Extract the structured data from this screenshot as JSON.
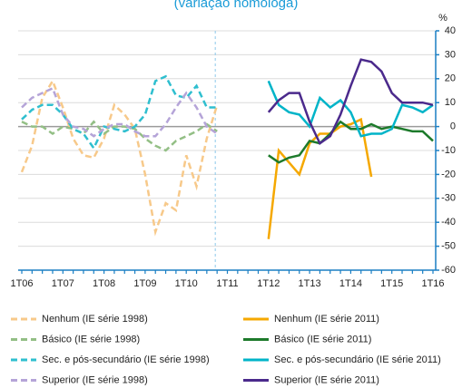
{
  "chart_data": {
    "type": "line",
    "title": "(variação homóloga)",
    "ylabel": "%",
    "categories": [
      "1T06",
      null,
      null,
      null,
      "1T07",
      null,
      null,
      null,
      "1T08",
      null,
      null,
      null,
      "1T09",
      null,
      null,
      null,
      "1T10",
      null,
      null,
      null,
      "1T11",
      null,
      null,
      null,
      "1T12",
      null,
      null,
      null,
      "1T13",
      null,
      null,
      null,
      "1T14",
      null,
      null,
      null,
      "1T15",
      null,
      null,
      null,
      "1T16"
    ],
    "ylim": [
      -60,
      40
    ],
    "yticks": [
      -60,
      -50,
      -40,
      -30,
      -20,
      -10,
      0,
      10,
      20,
      30,
      40
    ],
    "grid": true,
    "series": [
      {
        "name": "Nenhum (IE série 1998)",
        "color": "#f7c98a",
        "dashed": true,
        "values": [
          -19,
          -8,
          12,
          19,
          8,
          -5,
          -12,
          -13,
          -5,
          9,
          5,
          -1,
          -20,
          -44,
          -32,
          -35,
          -12,
          -25,
          -5,
          9,
          null,
          null,
          null,
          null,
          null,
          null,
          null,
          null,
          null,
          null,
          null,
          null,
          null,
          null,
          null,
          null,
          null,
          null,
          null,
          null,
          null
        ]
      },
      {
        "name": "Nenhum (IE série 2011)",
        "color": "#f5a800",
        "dashed": false,
        "values": [
          null,
          null,
          null,
          null,
          null,
          null,
          null,
          null,
          null,
          null,
          null,
          null,
          null,
          null,
          null,
          null,
          null,
          null,
          null,
          null,
          null,
          null,
          null,
          null,
          -47,
          -10,
          -15,
          -20,
          -7,
          -3,
          -3,
          0,
          1,
          3,
          -21,
          null,
          null,
          null,
          null,
          null,
          null
        ]
      },
      {
        "name": "Básico (IE série 1998)",
        "color": "#93bf85",
        "dashed": true,
        "values": [
          2,
          0,
          0,
          -3,
          0,
          -1,
          -3,
          2,
          -3,
          0,
          0,
          -1,
          -5,
          -8,
          -10,
          -6,
          -4,
          -2,
          1,
          -2,
          null,
          null,
          null,
          null,
          null,
          null,
          null,
          null,
          null,
          null,
          null,
          null,
          null,
          null,
          null,
          null,
          null,
          null,
          null,
          null,
          null
        ]
      },
      {
        "name": "Básico (IE série 2011)",
        "color": "#1d7a2b",
        "dashed": false,
        "values": [
          null,
          null,
          null,
          null,
          null,
          null,
          null,
          null,
          null,
          null,
          null,
          null,
          null,
          null,
          null,
          null,
          null,
          null,
          null,
          null,
          null,
          null,
          null,
          null,
          -12,
          -15,
          -13,
          -12,
          -6,
          -7,
          -3,
          2,
          -1,
          -1,
          1,
          -1,
          0,
          -1,
          -2,
          -2,
          -6
        ]
      },
      {
        "name": "Sec. e pós-secundário (IE série 1998)",
        "color": "#2fbfcf",
        "dashed": true,
        "values": [
          3,
          7,
          9,
          9,
          5,
          -1,
          -3,
          -9,
          0,
          -1,
          -2,
          0,
          5,
          19,
          21,
          13,
          12,
          17,
          8,
          8,
          null,
          null,
          null,
          null,
          null,
          null,
          null,
          null,
          null,
          null,
          null,
          null,
          null,
          null,
          null,
          null,
          null,
          null,
          null,
          null,
          null
        ]
      },
      {
        "name": "Sec. e pós-secundário (IE série 2011)",
        "color": "#00b4c8",
        "dashed": false,
        "values": [
          null,
          null,
          null,
          null,
          null,
          null,
          null,
          null,
          null,
          null,
          null,
          null,
          null,
          null,
          null,
          null,
          null,
          null,
          null,
          null,
          null,
          null,
          null,
          null,
          19,
          9,
          6,
          5,
          0,
          12,
          8,
          11,
          6,
          -4,
          -3,
          -3,
          -1,
          9,
          8,
          6,
          9
        ]
      },
      {
        "name": "Superior (IE série 1998)",
        "color": "#b5a4d8",
        "dashed": true,
        "values": [
          8,
          12,
          14,
          16,
          5,
          0,
          -1,
          -4,
          -1,
          1,
          1,
          -2,
          -4,
          -4,
          1,
          8,
          14,
          8,
          0,
          -3,
          null,
          null,
          null,
          null,
          null,
          null,
          null,
          null,
          null,
          null,
          null,
          null,
          null,
          null,
          null,
          null,
          null,
          null,
          null,
          null,
          null
        ]
      },
      {
        "name": "Superior (IE série 2011)",
        "color": "#4b2a8c",
        "dashed": false,
        "values": [
          null,
          null,
          null,
          null,
          null,
          null,
          null,
          null,
          null,
          null,
          null,
          null,
          null,
          null,
          null,
          null,
          null,
          null,
          null,
          null,
          null,
          null,
          null,
          null,
          6,
          11,
          14,
          14,
          2,
          -7,
          -4,
          5,
          17,
          28,
          27,
          23,
          14,
          10,
          10,
          10,
          9
        ]
      }
    ]
  }
}
